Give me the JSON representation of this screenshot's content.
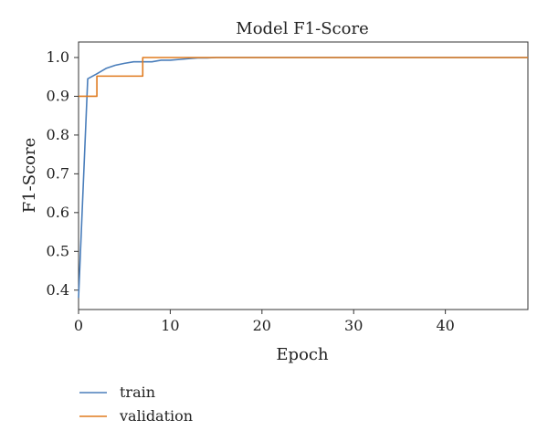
{
  "chart_data": {
    "type": "line",
    "title": "Model F1-Score",
    "xlabel": "Epoch",
    "ylabel": "F1-Score",
    "xlim": [
      0,
      49
    ],
    "ylim": [
      0.35,
      1.04
    ],
    "xticks": [
      0,
      10,
      20,
      30,
      40
    ],
    "xtick_labels": [
      "0",
      "10",
      "20",
      "30",
      "40"
    ],
    "yticks": [
      0.4,
      0.5,
      0.6,
      0.7,
      0.8,
      0.9,
      1.0
    ],
    "ytick_labels": [
      "0.4",
      "0.5",
      "0.6",
      "0.7",
      "0.8",
      "0.9",
      "1.0"
    ],
    "grid": false,
    "legend_position": "bottom-left, below plot",
    "series": [
      {
        "name": "train",
        "color": "#4a7ebb",
        "x": [
          0,
          1,
          2,
          3,
          4,
          5,
          6,
          7,
          8,
          9,
          10,
          11,
          12,
          13,
          14,
          15,
          20,
          30,
          40,
          49
        ],
        "y": [
          0.38,
          0.945,
          0.958,
          0.972,
          0.98,
          0.985,
          0.989,
          0.989,
          0.989,
          0.993,
          0.993,
          0.995,
          0.997,
          0.999,
          0.999,
          1.0,
          1.0,
          1.0,
          1.0,
          1.0
        ]
      },
      {
        "name": "validation",
        "color": "#e07b1f",
        "x": [
          0,
          1,
          2,
          3,
          4,
          5,
          6,
          7,
          8,
          9,
          10,
          20,
          30,
          40,
          49
        ],
        "y": [
          0.9,
          0.9,
          0.952,
          0.952,
          0.952,
          0.952,
          0.952,
          1.0,
          1.0,
          1.0,
          1.0,
          1.0,
          1.0,
          1.0,
          1.0
        ]
      }
    ]
  }
}
